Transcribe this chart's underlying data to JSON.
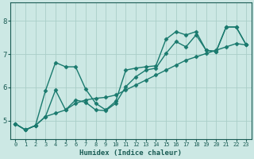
{
  "xlabel": "Humidex (Indice chaleur)",
  "bg_color": "#cce8e4",
  "line_color": "#1a7a6e",
  "marker": "D",
  "markersize": 2.5,
  "linewidth": 1.0,
  "xlim": [
    -0.5,
    23.5
  ],
  "ylim": [
    4.45,
    8.55
  ],
  "yticks": [
    5,
    6,
    7,
    8
  ],
  "xticks": [
    0,
    1,
    2,
    3,
    4,
    5,
    6,
    7,
    8,
    9,
    10,
    11,
    12,
    13,
    14,
    15,
    16,
    17,
    18,
    19,
    20,
    21,
    22,
    23
  ],
  "grid_color": "#aacec8",
  "font_color": "#1a5c54",
  "series": [
    [
      4.9,
      4.72,
      4.85,
      5.9,
      6.75,
      6.62,
      6.62,
      5.95,
      5.52,
      5.32,
      5.58,
      6.52,
      6.58,
      6.62,
      6.65,
      7.45,
      7.68,
      7.58,
      7.68,
      7.12,
      7.08,
      7.82,
      7.82,
      7.28
    ],
    [
      4.9,
      4.72,
      4.85,
      5.12,
      5.92,
      5.32,
      5.62,
      5.55,
      5.32,
      5.3,
      5.52,
      6.02,
      6.32,
      6.52,
      6.58,
      7.02,
      7.38,
      7.22,
      7.58,
      7.12,
      7.08,
      7.82,
      7.82,
      7.28
    ],
    [
      4.9,
      4.72,
      4.85,
      5.12,
      5.22,
      5.32,
      5.52,
      5.62,
      5.67,
      5.7,
      5.77,
      5.92,
      6.07,
      6.22,
      6.37,
      6.52,
      6.67,
      6.82,
      6.92,
      7.02,
      7.12,
      7.22,
      7.32,
      7.28
    ]
  ]
}
